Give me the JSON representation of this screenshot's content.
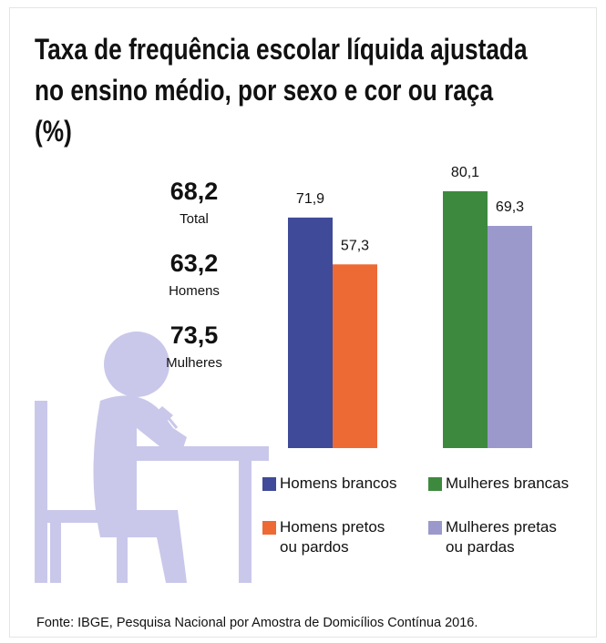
{
  "chart_data": {
    "type": "bar",
    "title": "Taxa de frequência escolar líquida ajustada no ensino médio, por sexo e cor ou raça (%)",
    "categories": [
      null,
      null
    ],
    "series": [
      {
        "name": "Homens brancos",
        "color": "#3f4a99",
        "values": [
          71.9,
          null
        ],
        "value_labels": [
          "71,9",
          null
        ]
      },
      {
        "name": "Homens pretos ou pardos",
        "color": "#ee6a35",
        "values": [
          57.3,
          null
        ],
        "value_labels": [
          "57,3",
          null
        ]
      },
      {
        "name": "Mulheres brancas",
        "color": "#3d8a3e",
        "values": [
          null,
          80.1
        ],
        "value_labels": [
          null,
          "80,1"
        ]
      },
      {
        "name": "Mulheres pretas ou pardas",
        "color": "#9b99cc",
        "values": [
          null,
          69.3
        ],
        "value_labels": [
          null,
          "69,3"
        ]
      }
    ],
    "summary": [
      {
        "value": "68,2",
        "label": "Total"
      },
      {
        "value": "63,2",
        "label": "Homens"
      },
      {
        "value": "73,5",
        "label": "Mulheres"
      }
    ],
    "source": "Fonte: IBGE, Pesquisa Nacional por Amostra de Domicílios Contínua 2016."
  }
}
